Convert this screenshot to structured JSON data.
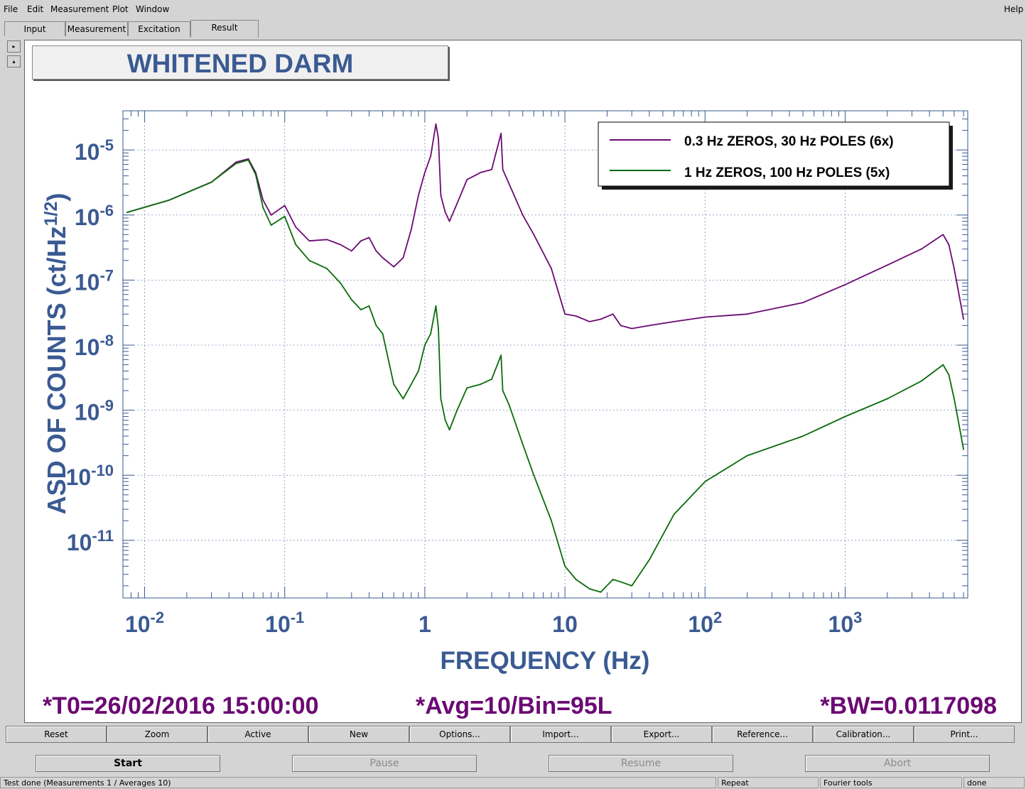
{
  "menubar": {
    "items": [
      "File",
      "Edit",
      "Measurement",
      "Plot",
      "Window"
    ],
    "help": "Help"
  },
  "tabs": [
    "Input",
    "Measurement",
    "Excitation",
    "Result"
  ],
  "panel_title": "WHITENED DARM",
  "legend": [
    {
      "label": "0.3 Hz ZEROS, 30 Hz POLES (6x)",
      "color": "#6b0a73"
    },
    {
      "label": "1 Hz ZEROS, 100 Hz POLES (5x)",
      "color": "#0a6b0a"
    }
  ],
  "footer": {
    "t0": "*T0=26/02/2016 15:00:00",
    "avg": "*Avg=10/Bin=95L",
    "bw": "*BW=0.0117098"
  },
  "toolbar": [
    "Reset",
    "Zoom",
    "Active",
    "New",
    "Options...",
    "Import...",
    "Export...",
    "Reference...",
    "Calibration...",
    "Print..."
  ],
  "control_buttons": {
    "start": "Start",
    "pause": "Pause",
    "resume": "Resume",
    "abort": "Abort"
  },
  "status": {
    "message": "Test done (Measurements 1 / Averages 10)",
    "repeat": "Repeat",
    "tools": "Fourier tools",
    "state": "done"
  },
  "chart_data": {
    "type": "line",
    "xlabel": "FREQUENCY (Hz)",
    "ylabel": "ASD OF COUNTS (ct/Hz^{1/2})",
    "xscale": "log",
    "yscale": "log",
    "xlim": [
      0.007,
      7500
    ],
    "ylim": [
      1.3e-12,
      4e-05
    ],
    "grid": true,
    "legend_position": "top-right",
    "x_ticks": [
      "10^-2",
      "10^-1",
      "1",
      "10",
      "10^2",
      "10^3"
    ],
    "y_ticks": [
      "10^-5",
      "10^-6",
      "10^-7",
      "10^-8",
      "10^-9",
      "10^-10",
      "10^-11"
    ],
    "series": [
      {
        "name": "0.3 Hz ZEROS, 30 Hz POLES (6x)",
        "color": "#6b0a73",
        "x": [
          0.0075,
          0.015,
          0.03,
          0.045,
          0.055,
          0.062,
          0.07,
          0.08,
          0.1,
          0.12,
          0.15,
          0.2,
          0.25,
          0.3,
          0.35,
          0.4,
          0.45,
          0.5,
          0.6,
          0.7,
          0.8,
          0.9,
          1.0,
          1.1,
          1.2,
          1.25,
          1.3,
          1.4,
          1.5,
          1.7,
          2.0,
          2.5,
          3.0,
          3.5,
          3.6,
          4.0,
          5.0,
          6.0,
          8.0,
          10,
          12,
          15,
          18,
          22,
          25,
          30,
          40,
          60,
          100,
          200,
          500,
          1000,
          2000,
          3500,
          5000,
          5500,
          6000,
          6500,
          7000
        ],
        "y": [
          1.1e-06,
          1.7e-06,
          3.2e-06,
          6.5e-06,
          7.3e-06,
          4.5e-06,
          1.7e-06,
          1e-06,
          1.4e-06,
          6.5e-07,
          4e-07,
          4.2e-07,
          3.5e-07,
          2.8e-07,
          4e-07,
          4.5e-07,
          2.8e-07,
          2.2e-07,
          1.6e-07,
          2.2e-07,
          6e-07,
          2e-06,
          4.5e-06,
          8e-06,
          2.5e-05,
          1.5e-05,
          2e-06,
          1.1e-06,
          8e-07,
          1.5e-06,
          3.5e-06,
          4.5e-06,
          5e-06,
          1.8e-05,
          5e-06,
          3e-06,
          1e-06,
          5e-07,
          1.5e-07,
          3e-08,
          2.8e-08,
          2.3e-08,
          2.5e-08,
          3e-08,
          2e-08,
          1.8e-08,
          2e-08,
          2.3e-08,
          2.7e-08,
          3e-08,
          4.5e-08,
          8.5e-08,
          1.7e-07,
          3e-07,
          5e-07,
          3.5e-07,
          1.5e-07,
          6e-08,
          2.5e-08
        ]
      },
      {
        "name": "1 Hz ZEROS, 100 Hz POLES (5x)",
        "color": "#0a6b0a",
        "x": [
          0.0075,
          0.015,
          0.03,
          0.045,
          0.055,
          0.062,
          0.07,
          0.08,
          0.1,
          0.12,
          0.15,
          0.2,
          0.25,
          0.3,
          0.35,
          0.4,
          0.45,
          0.5,
          0.6,
          0.7,
          0.8,
          0.9,
          1.0,
          1.1,
          1.2,
          1.25,
          1.3,
          1.4,
          1.5,
          1.7,
          2.0,
          2.5,
          3.0,
          3.5,
          3.6,
          4.0,
          5.0,
          6.0,
          8.0,
          10,
          12,
          15,
          18,
          22,
          25,
          30,
          40,
          60,
          100,
          200,
          500,
          1000,
          2000,
          3500,
          5000,
          5500,
          6000,
          6500,
          7000
        ],
        "y": [
          1.1e-06,
          1.7e-06,
          3.2e-06,
          6.2e-06,
          7e-06,
          4.2e-06,
          1.3e-06,
          7e-07,
          9.5e-07,
          3.5e-07,
          2e-07,
          1.5e-07,
          9e-08,
          5e-08,
          3.5e-08,
          4e-08,
          2e-08,
          1.5e-08,
          2.5e-09,
          1.5e-09,
          2.5e-09,
          4e-09,
          1e-08,
          1.5e-08,
          4e-08,
          1.8e-08,
          1.5e-09,
          7e-10,
          5e-10,
          1e-09,
          2.2e-09,
          2.5e-09,
          3e-09,
          7e-09,
          2e-09,
          1.2e-09,
          3e-10,
          1e-10,
          2e-11,
          4e-12,
          2.5e-12,
          1.8e-12,
          1.6e-12,
          2.5e-12,
          2.3e-12,
          2e-12,
          5e-12,
          2.5e-11,
          8e-11,
          2e-10,
          4e-10,
          8e-10,
          1.5e-09,
          2.8e-09,
          5e-09,
          3.5e-09,
          1.5e-09,
          6e-10,
          2.5e-10
        ]
      }
    ]
  }
}
